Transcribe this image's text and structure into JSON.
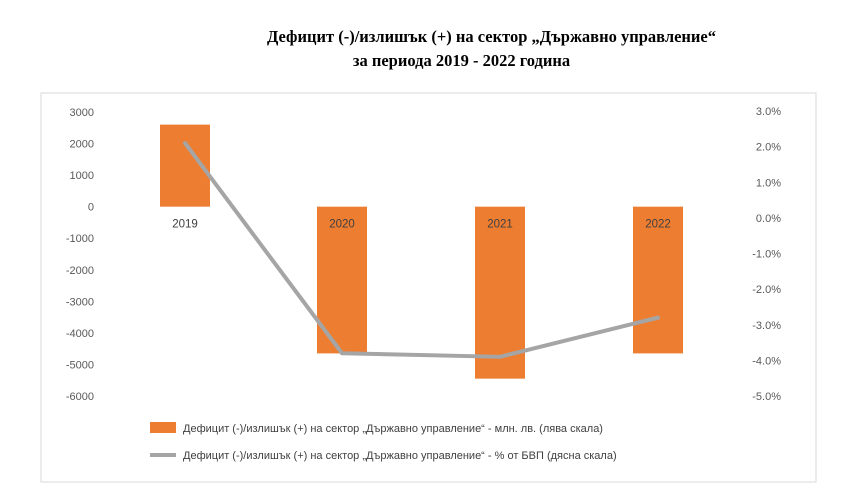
{
  "chart_data": {
    "type": "bar",
    "title_line1": "Дефицит (-)/излишък (+) на сектор „Държавно управление“",
    "title_line2": "за периода 2019 - 2022 година",
    "categories": [
      "2019",
      "2020",
      "2021",
      "2022"
    ],
    "series": [
      {
        "name": "Дефицит (-)/излишък (+) на сектор „Държавно управление“ - млн. лв. (лява скала)",
        "type": "bar",
        "axis": "left",
        "color": "#ED7D31",
        "values": [
          2600,
          -4650,
          -5450,
          -4650
        ]
      },
      {
        "name": "Дефицит (-)/излишък (+) на сектор „Държавно управление“ - % от БВП (дясна скала)",
        "type": "line",
        "axis": "right",
        "color": "#A5A5A5",
        "values": [
          2.1,
          -3.8,
          -3.9,
          -2.8
        ]
      }
    ],
    "left_axis": {
      "ylim": [
        -6000,
        3000
      ],
      "ticks": [
        "3000",
        "2000",
        "1000",
        "0",
        "-1000",
        "-2000",
        "-3000",
        "-4000",
        "-5000",
        "-6000"
      ]
    },
    "right_axis": {
      "ylim": [
        -5.0,
        3.0
      ],
      "ticks": [
        "3.0%",
        "2.0%",
        "1.0%",
        "0.0%",
        "-1.0%",
        "-2.0%",
        "-3.0%",
        "-4.0%",
        "-5.0%"
      ]
    },
    "legend_position": "bottom",
    "grid": false
  }
}
